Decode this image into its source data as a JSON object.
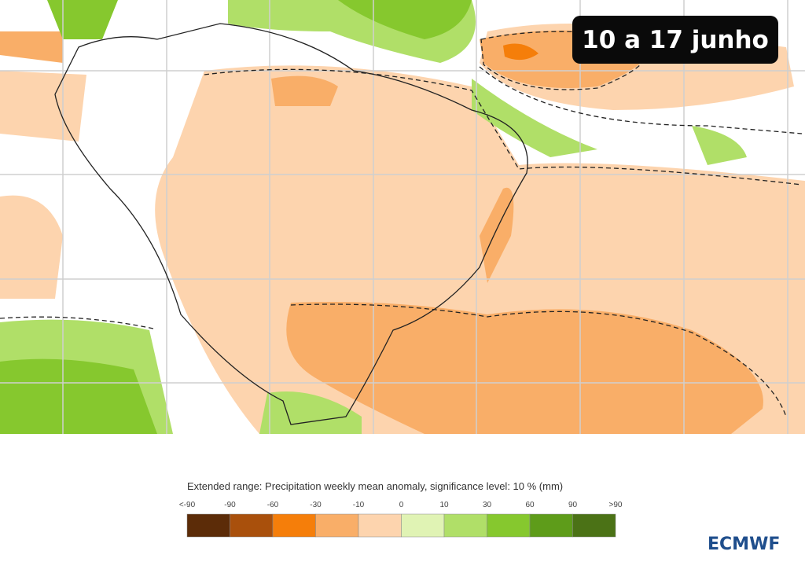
{
  "badge": "10 a 17 junho",
  "legend": {
    "title": "Extended range: Precipitation weekly mean anomaly, significance level: 10 % (mm)",
    "labels": [
      "<-90",
      "-90",
      "-60",
      "-30",
      "-10",
      "0",
      "10",
      "30",
      "60",
      "90",
      ">90"
    ],
    "colors": [
      "#5c2c08",
      "#a9500c",
      "#f57e0a",
      "#f9ae68",
      "#fdd4ae",
      "#e0f3b4",
      "#b0df68",
      "#86c82e",
      "#5e9c1a",
      "#4b7216"
    ]
  },
  "logo": "ECMWF"
}
